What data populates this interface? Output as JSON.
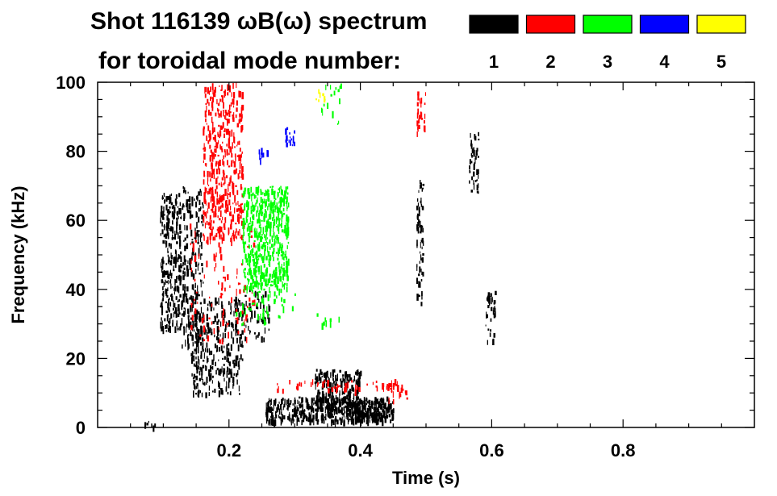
{
  "chart_data": {
    "type": "spectrogram",
    "title_line1": "Shot 116139 ωB(ω) spectrum",
    "title_line2": "for toroidal mode number:",
    "xlabel": "Time (s)",
    "ylabel": "Frequency (kHz)",
    "xlim": [
      0.0,
      1.0
    ],
    "ylim": [
      0,
      100
    ],
    "x_ticks": [
      {
        "value": 0.2,
        "label": "0.2"
      },
      {
        "value": 0.4,
        "label": "0.4"
      },
      {
        "value": 0.6,
        "label": "0.6"
      },
      {
        "value": 0.8,
        "label": "0.8"
      }
    ],
    "y_ticks": [
      {
        "value": 0,
        "label": "0"
      },
      {
        "value": 20,
        "label": "20"
      },
      {
        "value": 40,
        "label": "40"
      },
      {
        "value": 60,
        "label": "60"
      },
      {
        "value": 80,
        "label": "80"
      },
      {
        "value": 100,
        "label": "100"
      }
    ],
    "legend": [
      {
        "mode": "1",
        "color": "#000000"
      },
      {
        "mode": "2",
        "color": "#ff0000"
      },
      {
        "mode": "3",
        "color": "#00ff00"
      },
      {
        "mode": "4",
        "color": "#0000ff"
      },
      {
        "mode": "5",
        "color": "#ffff00"
      }
    ],
    "regions": [
      {
        "mode": "1",
        "t": [
          0.095,
          0.125
        ],
        "f": [
          28,
          68
        ],
        "density": 0.55
      },
      {
        "mode": "1",
        "t": [
          0.125,
          0.16
        ],
        "f": [
          24,
          70
        ],
        "density": 0.35
      },
      {
        "mode": "1",
        "t": [
          0.14,
          0.22
        ],
        "f": [
          10,
          38
        ],
        "density": 0.35
      },
      {
        "mode": "1",
        "t": [
          0.22,
          0.26
        ],
        "f": [
          26,
          40
        ],
        "density": 0.25
      },
      {
        "mode": "1",
        "t": [
          0.255,
          0.45
        ],
        "f": [
          2,
          9
        ],
        "density": 0.85
      },
      {
        "mode": "1",
        "t": [
          0.33,
          0.4
        ],
        "f": [
          5,
          17
        ],
        "density": 0.7
      },
      {
        "mode": "1",
        "t": [
          0.38,
          0.44
        ],
        "f": [
          2,
          8
        ],
        "density": 0.8
      },
      {
        "mode": "1",
        "t": [
          0.485,
          0.495
        ],
        "f": [
          36,
          72
        ],
        "density": 0.45
      },
      {
        "mode": "1",
        "t": [
          0.565,
          0.58
        ],
        "f": [
          68,
          86
        ],
        "density": 0.4
      },
      {
        "mode": "1",
        "t": [
          0.59,
          0.605
        ],
        "f": [
          25,
          40
        ],
        "density": 0.4
      },
      {
        "mode": "1",
        "t": [
          0.07,
          0.09
        ],
        "f": [
          0.5,
          2
        ],
        "density": 0.4
      },
      {
        "mode": "2",
        "t": [
          0.16,
          0.22
        ],
        "f": [
          55,
          100
        ],
        "density": 0.4
      },
      {
        "mode": "2",
        "t": [
          0.14,
          0.24
        ],
        "f": [
          25,
          60
        ],
        "density": 0.08
      },
      {
        "mode": "2",
        "t": [
          0.27,
          0.46
        ],
        "f": [
          11,
          14
        ],
        "density": 0.25
      },
      {
        "mode": "2",
        "t": [
          0.44,
          0.47
        ],
        "f": [
          8,
          13
        ],
        "density": 0.35
      },
      {
        "mode": "2",
        "t": [
          0.485,
          0.5
        ],
        "f": [
          85,
          100
        ],
        "density": 0.3
      },
      {
        "mode": "3",
        "t": [
          0.22,
          0.29
        ],
        "f": [
          40,
          70
        ],
        "density": 0.65
      },
      {
        "mode": "3",
        "t": [
          0.21,
          0.3
        ],
        "f": [
          30,
          40
        ],
        "density": 0.12
      },
      {
        "mode": "3",
        "t": [
          0.33,
          0.37
        ],
        "f": [
          28,
          34
        ],
        "density": 0.1
      },
      {
        "mode": "3",
        "t": [
          0.34,
          0.37
        ],
        "f": [
          88,
          100
        ],
        "density": 0.12
      },
      {
        "mode": "4",
        "t": [
          0.285,
          0.3
        ],
        "f": [
          82,
          87
        ],
        "density": 0.6
      },
      {
        "mode": "4",
        "t": [
          0.245,
          0.26
        ],
        "f": [
          78,
          81
        ],
        "density": 0.5
      },
      {
        "mode": "5",
        "t": [
          0.33,
          0.345
        ],
        "f": [
          95,
          100
        ],
        "density": 0.15
      }
    ]
  }
}
